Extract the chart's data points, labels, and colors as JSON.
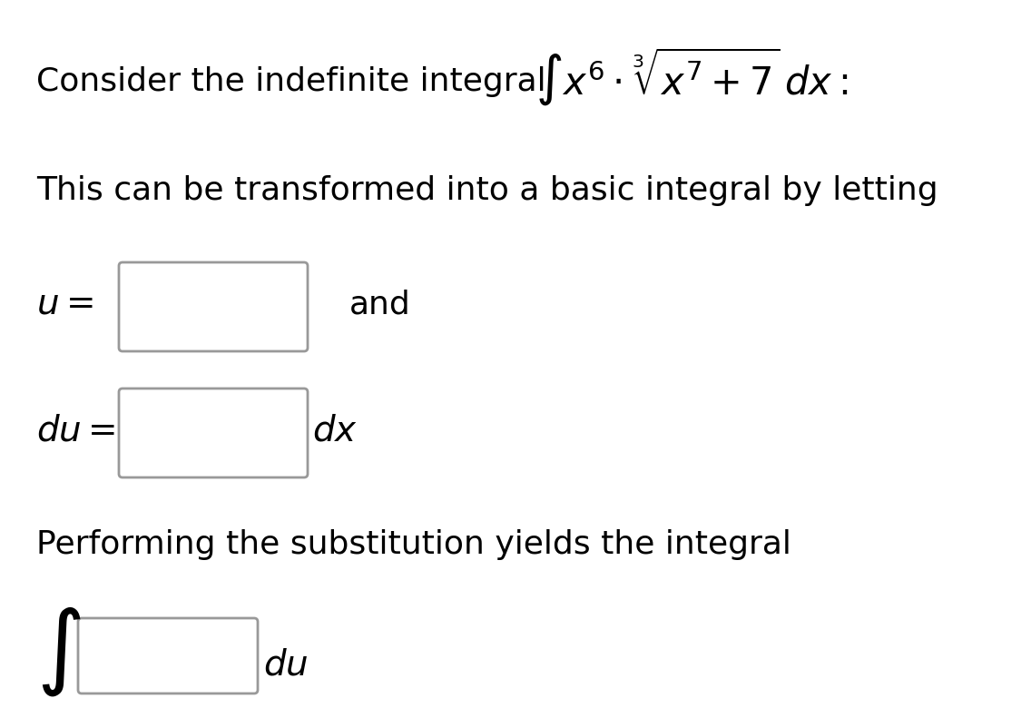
{
  "background_color": "#ffffff",
  "line1_text_left": "Consider the indefinite integral",
  "line1_math": "$\\int x^6 \\cdot \\sqrt[3]{x^7 + 7}\\, dx:$",
  "line2_text": "This can be transformed into a basic integral by letting",
  "u_label": "$u =$",
  "and_text": "and",
  "du_label": "$du =$",
  "dx_text": "$dx$",
  "line3_text": "Performing the substitution yields the integral",
  "integral_symbol": "$\\int$",
  "du_bottom": "$du$",
  "font_size_text": 26,
  "font_size_math": 30,
  "font_size_italic": 28,
  "text_color": "#000000",
  "box_color": "#999999"
}
